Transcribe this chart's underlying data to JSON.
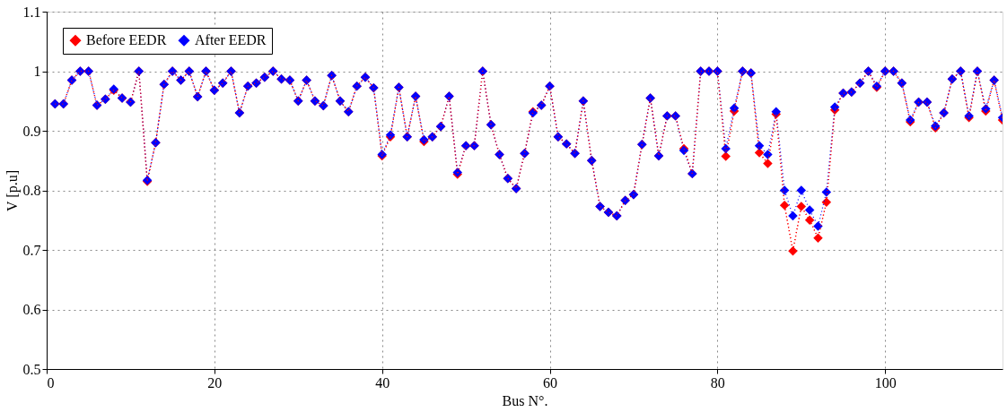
{
  "chart_data": {
    "type": "line",
    "xlabel": "Bus N°.",
    "ylabel": "V [p.u]",
    "x": [
      1,
      2,
      3,
      4,
      5,
      6,
      7,
      8,
      9,
      10,
      11,
      12,
      13,
      14,
      15,
      16,
      17,
      18,
      19,
      20,
      21,
      22,
      23,
      24,
      25,
      26,
      27,
      28,
      29,
      30,
      31,
      32,
      33,
      34,
      35,
      36,
      37,
      38,
      39,
      40,
      41,
      42,
      43,
      44,
      45,
      46,
      47,
      48,
      49,
      50,
      51,
      52,
      53,
      54,
      55,
      56,
      57,
      58,
      59,
      60,
      61,
      62,
      63,
      64,
      65,
      66,
      67,
      68,
      69,
      70,
      71,
      72,
      73,
      74,
      75,
      76,
      77,
      78,
      79,
      80,
      81,
      82,
      83,
      84,
      85,
      86,
      87,
      88,
      89,
      90,
      91,
      92,
      93,
      94,
      95,
      96,
      97,
      98,
      99,
      100,
      101,
      102,
      103,
      104,
      105,
      106,
      107,
      108,
      109,
      110,
      111,
      112,
      113,
      114
    ],
    "series": [
      {
        "name": "Before EEDR",
        "color": "#ff0000",
        "values": [
          0.945,
          0.945,
          0.985,
          1.0,
          1.0,
          0.943,
          0.953,
          0.968,
          0.955,
          0.948,
          1.0,
          0.815,
          0.88,
          0.978,
          1.0,
          0.985,
          1.0,
          0.957,
          1.0,
          0.968,
          0.98,
          1.0,
          0.93,
          0.975,
          0.98,
          0.99,
          1.0,
          0.987,
          0.985,
          0.95,
          0.985,
          0.95,
          0.942,
          0.993,
          0.95,
          0.932,
          0.975,
          0.99,
          0.972,
          0.858,
          0.89,
          0.973,
          0.89,
          0.958,
          0.882,
          0.89,
          0.907,
          0.958,
          0.827,
          0.875,
          0.875,
          1.0,
          0.91,
          0.86,
          0.82,
          0.803,
          0.862,
          0.932,
          0.943,
          0.975,
          0.89,
          0.878,
          0.862,
          0.95,
          0.85,
          0.773,
          0.763,
          0.757,
          0.783,
          0.793,
          0.877,
          0.955,
          0.858,
          0.925,
          0.925,
          0.87,
          0.828,
          1.0,
          1.0,
          1.0,
          0.857,
          0.933,
          1.0,
          0.997,
          0.863,
          0.845,
          0.928,
          0.775,
          0.698,
          0.773,
          0.75,
          0.72,
          0.78,
          0.935,
          0.963,
          0.965,
          0.98,
          1.0,
          0.973,
          1.0,
          1.0,
          0.98,
          0.915,
          0.948,
          0.948,
          0.905,
          0.93,
          0.987,
          1.0,
          0.922,
          1.0,
          0.933,
          0.985,
          0.918
        ]
      },
      {
        "name": "After EEDR",
        "color": "#0000ff",
        "values": [
          0.945,
          0.945,
          0.985,
          1.0,
          1.0,
          0.943,
          0.953,
          0.97,
          0.955,
          0.948,
          1.0,
          0.817,
          0.88,
          0.978,
          1.0,
          0.985,
          1.0,
          0.957,
          1.0,
          0.968,
          0.98,
          1.0,
          0.93,
          0.975,
          0.98,
          0.99,
          1.0,
          0.987,
          0.985,
          0.95,
          0.985,
          0.95,
          0.942,
          0.993,
          0.95,
          0.932,
          0.975,
          0.99,
          0.972,
          0.86,
          0.893,
          0.973,
          0.89,
          0.958,
          0.885,
          0.89,
          0.907,
          0.958,
          0.83,
          0.875,
          0.875,
          1.0,
          0.91,
          0.86,
          0.82,
          0.803,
          0.862,
          0.93,
          0.943,
          0.975,
          0.89,
          0.878,
          0.862,
          0.95,
          0.85,
          0.773,
          0.763,
          0.757,
          0.783,
          0.793,
          0.877,
          0.955,
          0.858,
          0.925,
          0.925,
          0.867,
          0.828,
          1.0,
          1.0,
          1.0,
          0.87,
          0.938,
          1.0,
          0.997,
          0.875,
          0.86,
          0.932,
          0.8,
          0.757,
          0.8,
          0.767,
          0.74,
          0.797,
          0.94,
          0.963,
          0.965,
          0.98,
          1.0,
          0.975,
          1.0,
          1.0,
          0.98,
          0.918,
          0.948,
          0.948,
          0.908,
          0.93,
          0.987,
          1.0,
          0.925,
          1.0,
          0.937,
          0.985,
          0.922
        ]
      }
    ],
    "xlim": [
      0,
      114
    ],
    "xticks": [
      0,
      20,
      40,
      60,
      80,
      100
    ],
    "ylim": [
      0.5,
      1.1
    ],
    "yticks": [
      0.5,
      0.6,
      0.7,
      0.8,
      0.9,
      1,
      1.1
    ],
    "grid": true,
    "legend": "top left",
    "marker": "diamond",
    "line_style": "dotted"
  }
}
